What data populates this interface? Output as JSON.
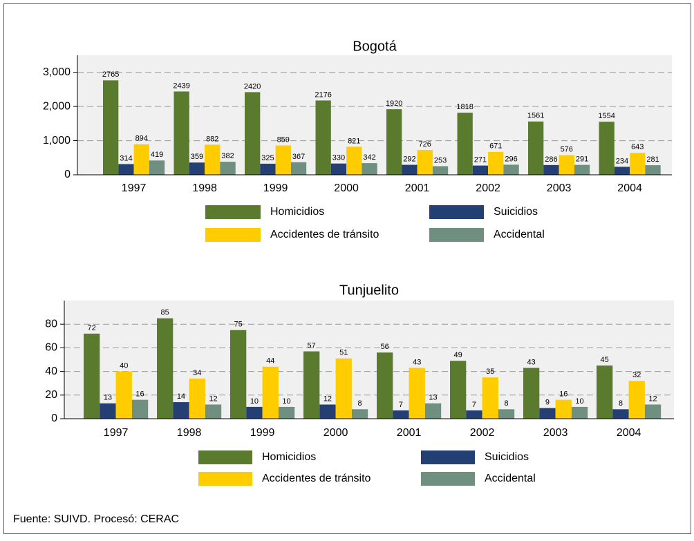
{
  "chart_data": [
    {
      "type": "bar",
      "title": "Bogotá",
      "categories": [
        "1997",
        "1998",
        "1999",
        "2000",
        "2001",
        "2002",
        "2003",
        "2004"
      ],
      "series": [
        {
          "name": "Homicidios",
          "color": "#5a7a2e",
          "values": [
            2765,
            2439,
            2420,
            2176,
            1920,
            1818,
            1561,
            1554
          ]
        },
        {
          "name": "Suicidios",
          "color": "#243f73",
          "values": [
            314,
            359,
            325,
            330,
            292,
            271,
            286,
            234
          ]
        },
        {
          "name": "Accidentes de tránsito",
          "color": "#ffcc00",
          "values": [
            894,
            882,
            859,
            821,
            726,
            671,
            576,
            643
          ]
        },
        {
          "name": "Accidental",
          "color": "#6f8f80",
          "values": [
            419,
            382,
            367,
            342,
            253,
            296,
            291,
            281
          ]
        }
      ],
      "ylim": [
        0,
        3500
      ],
      "yticks": [
        0,
        {
          "value": 1000,
          "label": "1,000"
        },
        {
          "value": 2000,
          "label": "2,000"
        },
        {
          "value": 3000,
          "label": "3,000"
        }
      ],
      "grid": true
    },
    {
      "type": "bar",
      "title": "Tunjuelito",
      "categories": [
        "1997",
        "1998",
        "1999",
        "2000",
        "2001",
        "2002",
        "2003",
        "2004"
      ],
      "series": [
        {
          "name": "Homicidios",
          "color": "#5a7a2e",
          "values": [
            72,
            85,
            75,
            57,
            56,
            49,
            43,
            45
          ]
        },
        {
          "name": "Suicidios",
          "color": "#243f73",
          "values": [
            13,
            14,
            10,
            12,
            7,
            7,
            9,
            8
          ]
        },
        {
          "name": "Accidentes de tránsito",
          "color": "#ffcc00",
          "values": [
            40,
            34,
            44,
            51,
            43,
            35,
            16,
            32
          ]
        },
        {
          "name": "Accidental",
          "color": "#6f8f80",
          "values": [
            16,
            12,
            10,
            8,
            13,
            8,
            10,
            12
          ]
        }
      ],
      "ylim": [
        0,
        100
      ],
      "yticks": [
        0,
        20,
        40,
        60,
        80
      ],
      "grid": true
    }
  ],
  "footnote": "Fuente: SUIVD. Procesó: CERAC"
}
